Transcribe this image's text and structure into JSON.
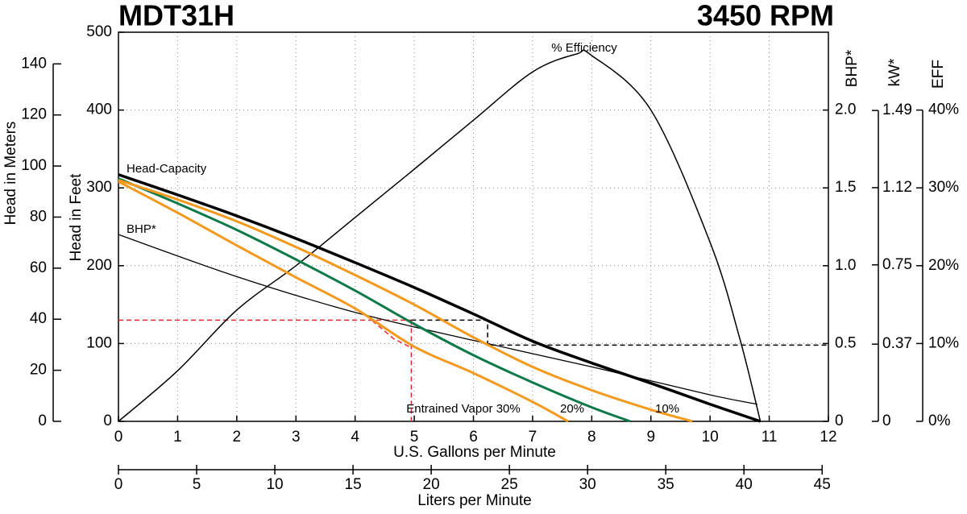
{
  "chart_data": {
    "type": "line",
    "title": "MDT31H",
    "subtitle": "3450 RPM",
    "xlabel": "U.S. Gallons per Minute",
    "ylabel": "Head in Feet",
    "xlim": [
      0,
      12
    ],
    "xticks": [
      0,
      1,
      2,
      3,
      4,
      5,
      6,
      7,
      8,
      9,
      10,
      11,
      12
    ],
    "ylim": [
      0,
      500
    ],
    "yticks": [
      0,
      100,
      200,
      300,
      400,
      500
    ],
    "grid": true,
    "meters_axis": {
      "label": "Head in Meters",
      "lim": [
        0,
        152.4
      ],
      "ticks": [
        0,
        20,
        40,
        60,
        80,
        100,
        120,
        140
      ]
    },
    "y2label": "BHP*",
    "y2lim": [
      0,
      2.5
    ],
    "y2ticks": [
      0,
      0.5,
      {
        "value": 1,
        "label": "1.0"
      },
      1.5,
      {
        "value": 2,
        "label": "2.0"
      }
    ],
    "kw_axis": {
      "label": "kW*",
      "lim": [
        0,
        1.865
      ],
      "ticks": [
        0,
        0.37,
        0.75,
        1.12,
        1.49
      ]
    },
    "y3label": "EFF",
    "y3lim": [
      0,
      50
    ],
    "y3ticks": [
      {
        "value": 0,
        "label": "0%"
      },
      {
        "value": 10,
        "label": "10%"
      },
      {
        "value": 20,
        "label": "20%"
      },
      {
        "value": 30,
        "label": "30%"
      },
      {
        "value": 40,
        "label": "40%"
      }
    ],
    "liters_axis": {
      "label": "Liters per Minute",
      "lim": [
        0,
        45.4
      ],
      "ticks": [
        0,
        5,
        10,
        15,
        20,
        25,
        30,
        35,
        40,
        45
      ]
    },
    "series": [
      {
        "name": "Head-Capacity",
        "color": "#000000",
        "axis": "y",
        "x": [
          0,
          1,
          2,
          3,
          4,
          5,
          6,
          7,
          8,
          9,
          10,
          10.85
        ],
        "values": [
          317,
          291,
          264,
          235,
          204,
          172,
          138,
          103,
          75,
          49,
          22,
          0
        ]
      },
      {
        "name": "BHP*",
        "color": "#000000",
        "axis": "y2",
        "x": [
          0,
          2,
          4,
          6,
          8,
          10,
          10.8
        ],
        "values": [
          1.2,
          0.93,
          0.7,
          0.52,
          0.35,
          0.17,
          0.11
        ]
      },
      {
        "name": "% Efficiency",
        "color": "#000000",
        "axis": "y3",
        "x": [
          0,
          1,
          2,
          3,
          4,
          5,
          6,
          7,
          7.74,
          8,
          9,
          10,
          10.5,
          10.85
        ],
        "values": [
          0,
          6.5,
          14.3,
          20,
          26.2,
          32.4,
          38.7,
          44.9,
          47.2,
          47,
          40,
          23,
          10.7,
          0
        ]
      },
      {
        "name": "Entrained Vapor 30%",
        "color": "#f39a1e",
        "axis": "y",
        "x": [
          0,
          1,
          2,
          3,
          4,
          5,
          6,
          7,
          7.6
        ],
        "values": [
          308,
          268,
          226,
          185,
          145,
          96,
          62,
          25,
          0
        ]
      },
      {
        "name": "20%",
        "color": "#0e7a4a",
        "axis": "y",
        "x": [
          0,
          1,
          2,
          3,
          4,
          5,
          6,
          7,
          8,
          8.65
        ],
        "values": [
          312,
          280,
          246,
          208,
          168,
          125,
          85,
          50,
          18,
          0
        ]
      },
      {
        "name": "10%",
        "color": "#f39a1e",
        "axis": "y",
        "x": [
          0,
          1,
          2,
          3,
          4,
          5,
          6,
          7,
          8,
          9,
          9.7
        ],
        "values": [
          310,
          285,
          257,
          224,
          188,
          150,
          108,
          70,
          40,
          15,
          0
        ]
      }
    ],
    "operating_point": {
      "x": 4.95,
      "y": 130,
      "color": "#e8282c"
    },
    "bhp_point": {
      "x": 6.24,
      "y2": 0.49,
      "color": "#000000"
    }
  }
}
